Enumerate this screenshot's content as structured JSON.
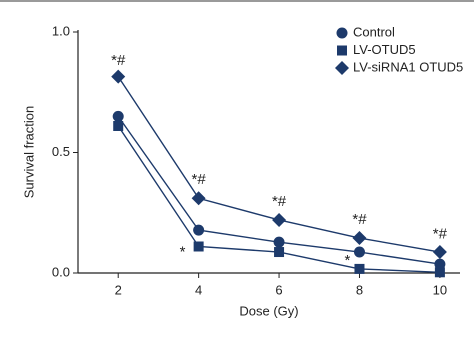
{
  "chart_data": {
    "type": "line",
    "x": [
      2,
      4,
      6,
      8,
      10
    ],
    "xlabel": "Dose (Gy)",
    "ylabel": "Survival fraction",
    "xlim": [
      1,
      10.5
    ],
    "xticks": [
      2,
      4,
      6,
      8,
      10
    ],
    "ylim": [
      0,
      1
    ],
    "yticks": [
      {
        "value": 0,
        "label": "0.0"
      },
      0.5,
      {
        "value": 1,
        "label": "1.0"
      }
    ],
    "legend": "upper right",
    "series": [
      {
        "name": "Control",
        "color": "#1d3a6b",
        "marker": "circle",
        "values": [
          0.65,
          0.178,
          0.128,
          0.087,
          0.037
        ]
      },
      {
        "name": "LV-OTUD5",
        "color": "#1d3a6b",
        "marker": "square",
        "values": [
          0.61,
          0.11,
          0.087,
          0.017,
          0.003
        ]
      },
      {
        "name": "LV-siRNA1 OTUD5",
        "color": "#1d3a6b",
        "marker": "diamond",
        "values": [
          0.815,
          0.31,
          0.22,
          0.145,
          0.087
        ]
      }
    ],
    "annotations": [
      {
        "text": "*#",
        "x": 2,
        "y": 0.88
      },
      {
        "text": "*#",
        "x": 4,
        "y": 0.385
      },
      {
        "text": "*#",
        "x": 6,
        "y": 0.295
      },
      {
        "text": "*#",
        "x": 8,
        "y": 0.22
      },
      {
        "text": "*#",
        "x": 10,
        "y": 0.16
      },
      {
        "text": "*",
        "x": 3.6,
        "y": 0.085
      },
      {
        "text": "*",
        "x": 7.7,
        "y": 0.05
      }
    ]
  }
}
